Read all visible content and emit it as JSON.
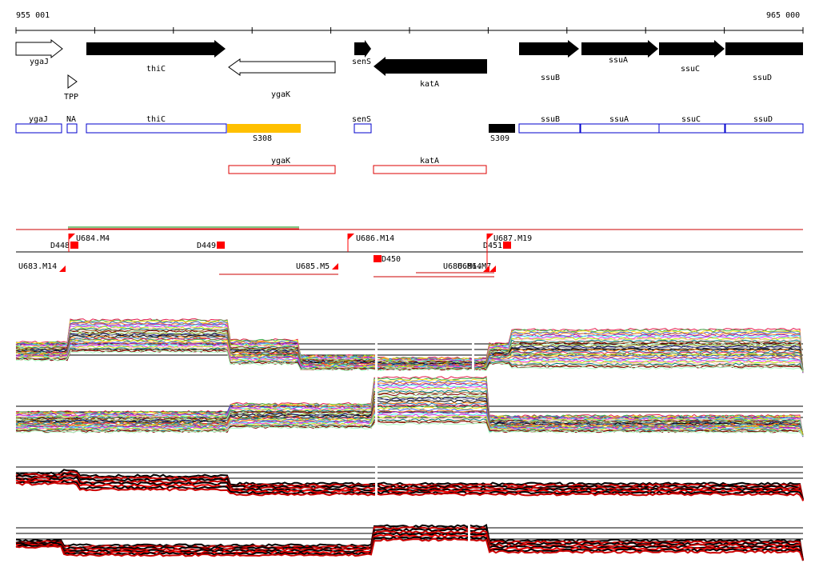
{
  "coords": {
    "start_label": "955 001",
    "end_label": "965 000"
  },
  "genes": [
    {
      "name": "ygaJ",
      "strand": "+",
      "filled": false,
      "label_pos": "below"
    },
    {
      "name": "thiC",
      "strand": "+",
      "filled": true,
      "label_pos": "below"
    },
    {
      "name": "ygaK",
      "strand": "-",
      "filled": false,
      "label_pos": "below"
    },
    {
      "name": "senS",
      "strand": "+",
      "filled": true,
      "label_pos": "below"
    },
    {
      "name": "katA",
      "strand": "-",
      "filled": true,
      "label_pos": "below"
    },
    {
      "name": "ssuB",
      "strand": "+",
      "filled": true,
      "label_pos": "below"
    },
    {
      "name": "ssuA",
      "strand": "+",
      "filled": true,
      "label_pos": "below"
    },
    {
      "name": "ssuC",
      "strand": "+",
      "filled": true,
      "label_pos": "below"
    },
    {
      "name": "ssuD",
      "strand": "+",
      "filled": true,
      "label_pos": "below"
    }
  ],
  "riboswitch": {
    "label": "TPP"
  },
  "annotations_row1": [
    {
      "label": "ygaJ",
      "kind": "gene"
    },
    {
      "label": "NA",
      "kind": "gene"
    },
    {
      "label": "thiC",
      "kind": "gene"
    },
    {
      "label": "S308",
      "kind": "ncrna",
      "color": "#ffc000"
    },
    {
      "label": "senS",
      "kind": "gene"
    },
    {
      "label": "S309",
      "kind": "ncrna",
      "color": "#000000"
    },
    {
      "label": "ssuB",
      "kind": "gene"
    },
    {
      "label": "ssuA",
      "kind": "gene"
    },
    {
      "label": "ssuC",
      "kind": "gene"
    },
    {
      "label": "ssuD",
      "kind": "gene"
    }
  ],
  "annotations_row2": [
    {
      "label": "ygaK"
    },
    {
      "label": "katA"
    }
  ],
  "transcription_units": [
    "D448",
    "U684.M4",
    "D449",
    "U683.M14",
    "U685.M5",
    "U686.M14",
    "D450",
    "U686.M14",
    "U686.M7",
    "D451",
    "U687.M19"
  ],
  "colors": {
    "gene_outline": "#0000cc",
    "antisense_outline": "#dd0000",
    "tu_marker": "#ff0000",
    "s308": "#ffc000"
  }
}
